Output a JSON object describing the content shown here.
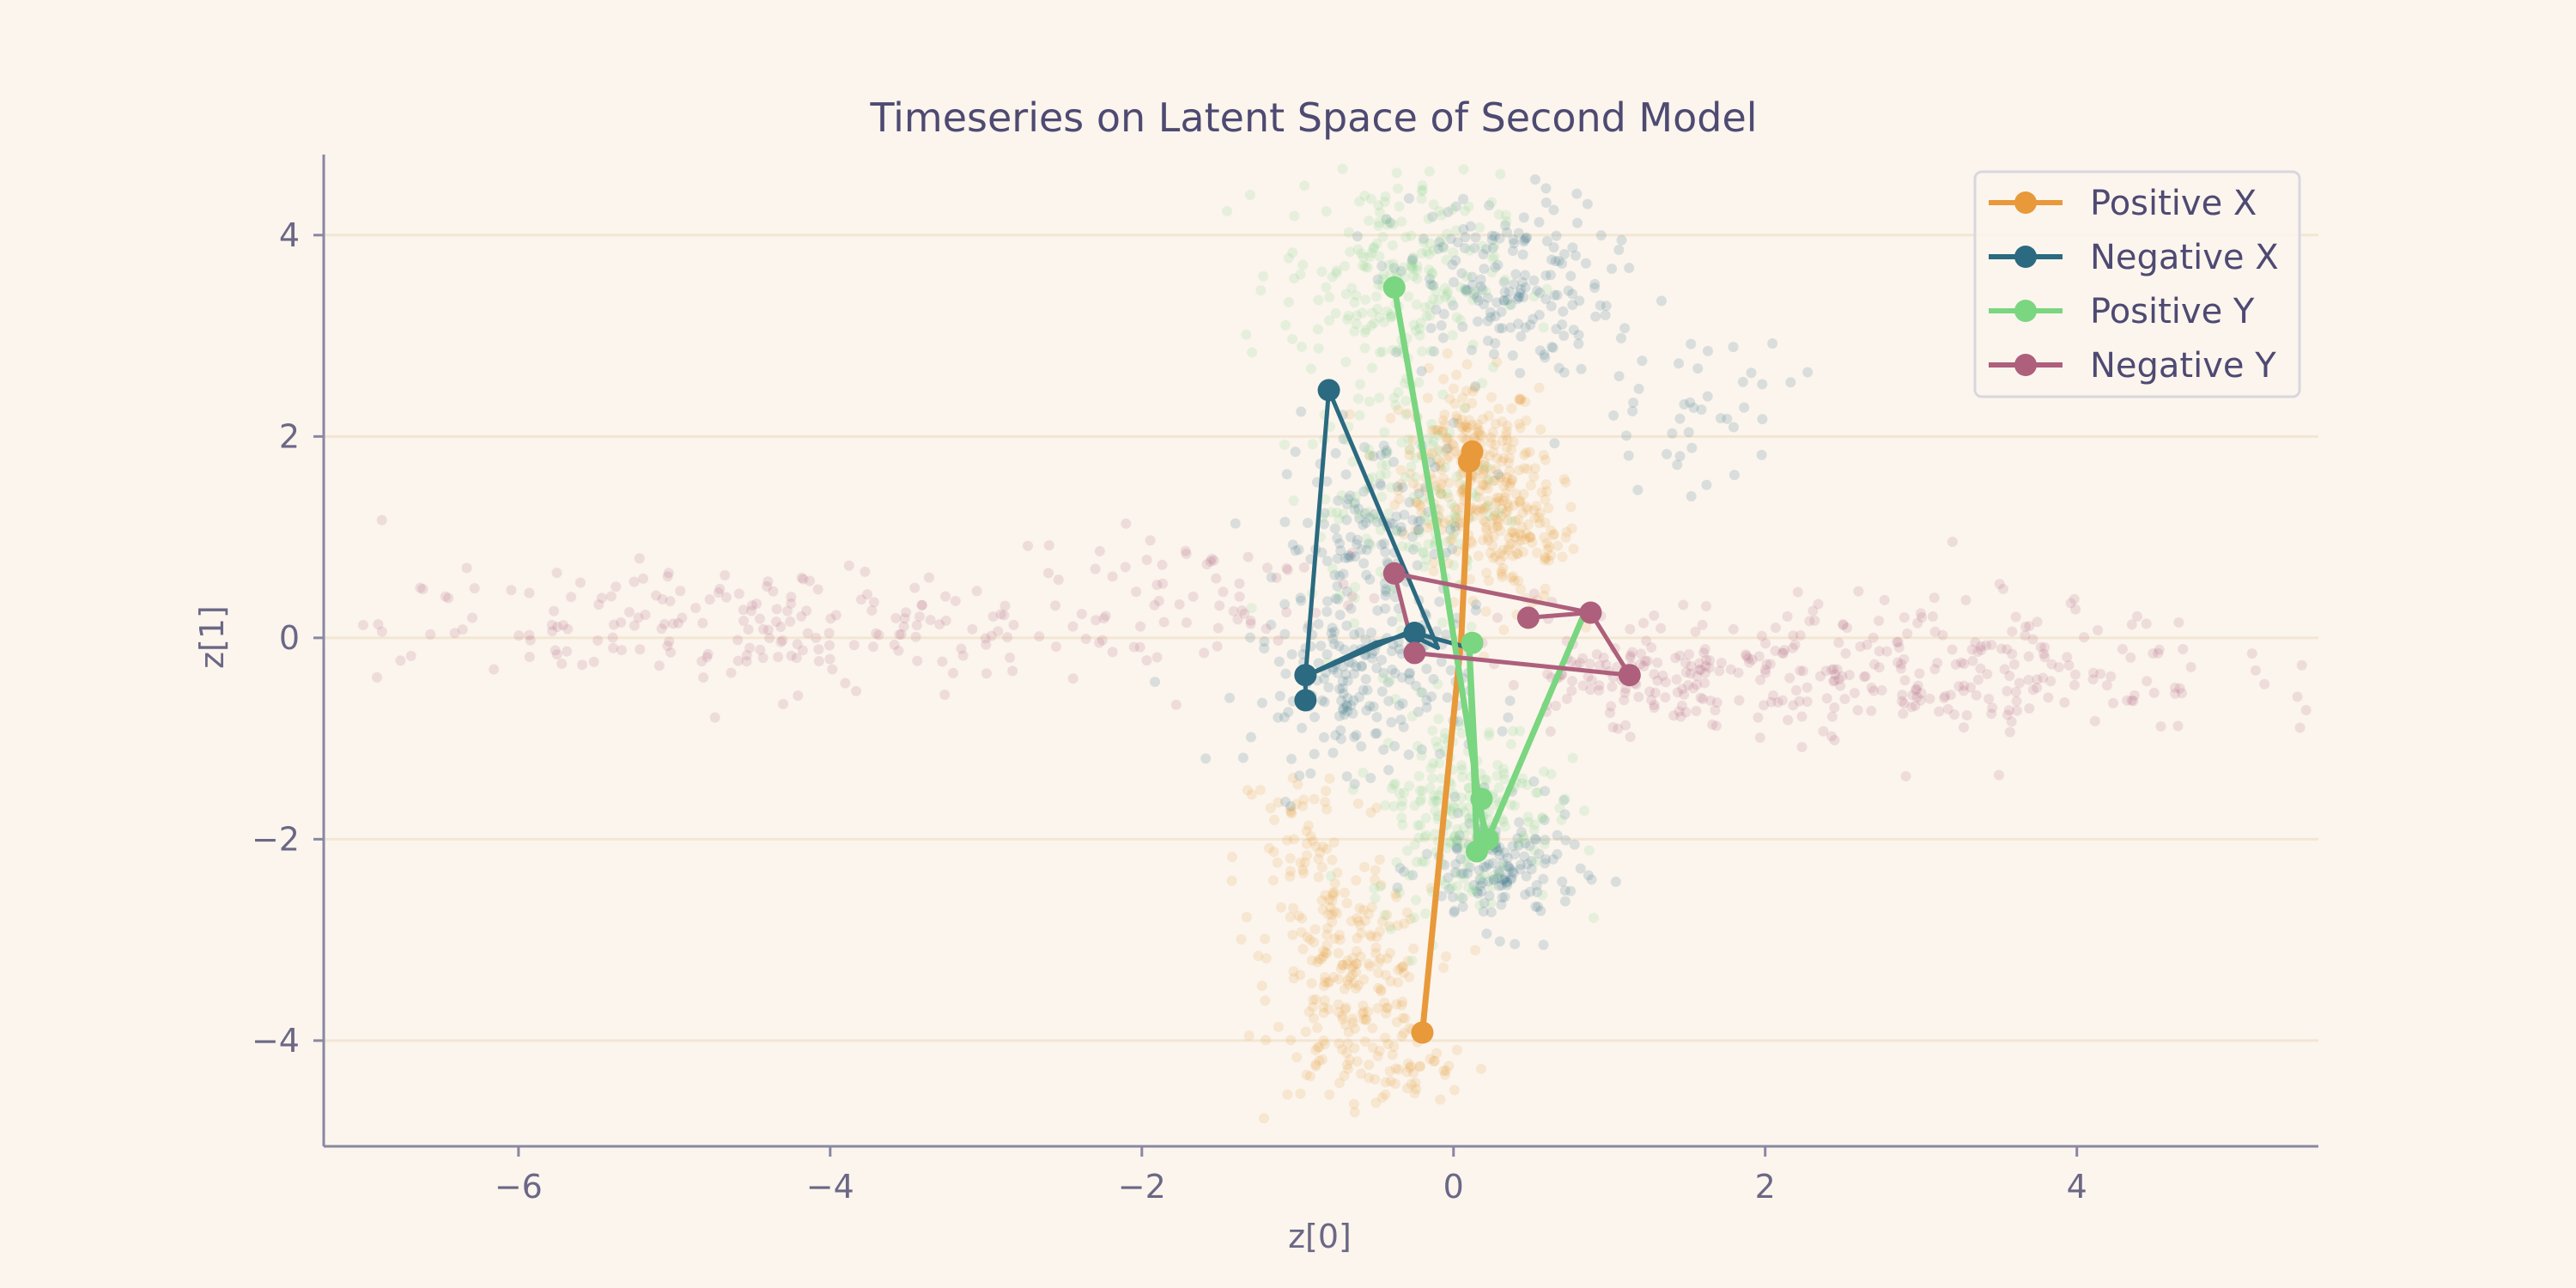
{
  "chart_data": {
    "type": "scatter",
    "title": "Timeseries on Latent Space of Second Model",
    "xlabel": "z[0]",
    "ylabel": "z[1]",
    "xlim": [
      -7.25,
      5.55
    ],
    "ylim": [
      -5.05,
      4.8
    ],
    "xticks": [
      -6,
      -4,
      -2,
      0,
      2,
      4
    ],
    "yticks": [
      -4,
      -2,
      0,
      2,
      4
    ],
    "xtick_labels": [
      "−6",
      "−4",
      "−2",
      "0",
      "2",
      "4"
    ],
    "ytick_labels": [
      "−4",
      "−2",
      "0",
      "2",
      "4"
    ],
    "grid": "horizontal",
    "legend_position": "top-right",
    "colors": {
      "positive_x": "#e8993a",
      "negative_x": "#2b6a80",
      "positive_y": "#7ad680",
      "negative_y": "#ad5f7c",
      "axis": "#8a87a3",
      "grid": "#f3e6d3",
      "background": "#fbf5ed"
    },
    "background_clouds": [
      {
        "name": "Positive X",
        "color": "#e8993a",
        "regions": [
          {
            "cx": 0.1,
            "cy": 1.7,
            "sx": 0.22,
            "sy": 0.45,
            "n": 260
          },
          {
            "cx": 0.4,
            "cy": 1.0,
            "sx": 0.2,
            "sy": 0.35,
            "n": 130
          },
          {
            "cx": -0.65,
            "cy": -3.5,
            "sx": 0.25,
            "sy": 0.5,
            "n": 200
          },
          {
            "cx": -0.9,
            "cy": -2.2,
            "sx": 0.25,
            "sy": 0.6,
            "n": 80
          },
          {
            "cx": -0.3,
            "cy": -4.3,
            "sx": 0.2,
            "sy": 0.2,
            "n": 40
          }
        ]
      },
      {
        "name": "Negative X",
        "color": "#2b6a80",
        "regions": [
          {
            "cx": 0.3,
            "cy": 3.5,
            "sx": 0.35,
            "sy": 0.45,
            "n": 180
          },
          {
            "cx": -0.5,
            "cy": 0.9,
            "sx": 0.3,
            "sy": 0.6,
            "n": 160
          },
          {
            "cx": -0.6,
            "cy": -0.5,
            "sx": 0.35,
            "sy": 0.4,
            "n": 170
          },
          {
            "cx": 0.3,
            "cy": -2.3,
            "sx": 0.25,
            "sy": 0.3,
            "n": 150
          },
          {
            "cx": 1.5,
            "cy": 2.3,
            "sx": 0.35,
            "sy": 0.4,
            "n": 45
          }
        ]
      },
      {
        "name": "Positive Y",
        "color": "#7ad680",
        "regions": [
          {
            "cx": -0.4,
            "cy": 3.6,
            "sx": 0.35,
            "sy": 0.5,
            "n": 200
          },
          {
            "cx": -0.3,
            "cy": 1.5,
            "sx": 0.3,
            "sy": 0.8,
            "n": 150
          },
          {
            "cx": 0.05,
            "cy": -1.7,
            "sx": 0.3,
            "sy": 0.5,
            "n": 220
          }
        ]
      },
      {
        "name": "Negative Y",
        "color": "#ad5f7c",
        "regions": [
          {
            "cx": -4.5,
            "cy": 0.1,
            "sx": 1.2,
            "sy": 0.3,
            "n": 210
          },
          {
            "cx": -1.7,
            "cy": 0.5,
            "sx": 0.6,
            "sy": 0.3,
            "n": 60
          },
          {
            "cx": 2.8,
            "cy": -0.3,
            "sx": 1.1,
            "sy": 0.35,
            "n": 300
          },
          {
            "cx": 1.1,
            "cy": -0.4,
            "sx": 0.35,
            "sy": 0.25,
            "n": 80
          }
        ]
      }
    ],
    "series": [
      {
        "name": "Positive X",
        "color": "#e8993a",
        "lw": 7,
        "x": [
          -0.2,
          0.05,
          0.1,
          0.12
        ],
        "y": [
          -3.92,
          0.0,
          1.65,
          1.82
        ]
      },
      {
        "name": "Negative X",
        "color": "#2b6a80",
        "lw": 5,
        "x": [
          -0.95,
          -0.95,
          -0.3,
          -0.1,
          -0.8,
          -0.95,
          -0.5,
          -0.25,
          0.1
        ],
        "y": [
          -0.62,
          -0.38,
          0.05,
          -0.1,
          2.46,
          -0.38,
          -0.05,
          0.05,
          -0.1
        ]
      },
      {
        "name": "Positive Y",
        "color": "#7ad680",
        "lw": 7,
        "x": [
          -0.38,
          -0.1,
          0.2,
          0.15,
          0.1,
          0.15,
          0.22,
          0.85
        ],
        "y": [
          3.48,
          1.0,
          -1.95,
          -2.1,
          -0.05,
          -1.6,
          -2.0,
          0.28
        ]
      },
      {
        "name": "Negative Y",
        "color": "#ad5f7c",
        "lw": 5,
        "x": [
          -0.25,
          -0.38,
          0.88,
          0.48,
          0.88,
          1.13,
          -0.25
        ],
        "y": [
          -0.15,
          0.64,
          0.25,
          0.2,
          0.25,
          -0.37,
          -0.15
        ]
      }
    ],
    "markers": [
      {
        "series": 0,
        "x": [
          -0.2,
          0.1,
          0.12
        ],
        "y": [
          -3.92,
          1.75,
          1.85
        ]
      },
      {
        "series": 1,
        "x": [
          -0.95,
          -0.95,
          -0.8,
          -0.25
        ],
        "y": [
          -0.62,
          -0.37,
          2.46,
          0.05
        ]
      },
      {
        "series": 2,
        "x": [
          -0.38,
          0.12,
          0.18,
          0.22,
          0.15
        ],
        "y": [
          3.48,
          -0.05,
          -1.6,
          -2.0,
          -2.12
        ]
      },
      {
        "series": 3,
        "x": [
          -0.38,
          -0.25,
          0.48,
          0.88,
          1.13
        ],
        "y": [
          0.64,
          -0.15,
          0.2,
          0.25,
          -0.37
        ]
      }
    ]
  }
}
